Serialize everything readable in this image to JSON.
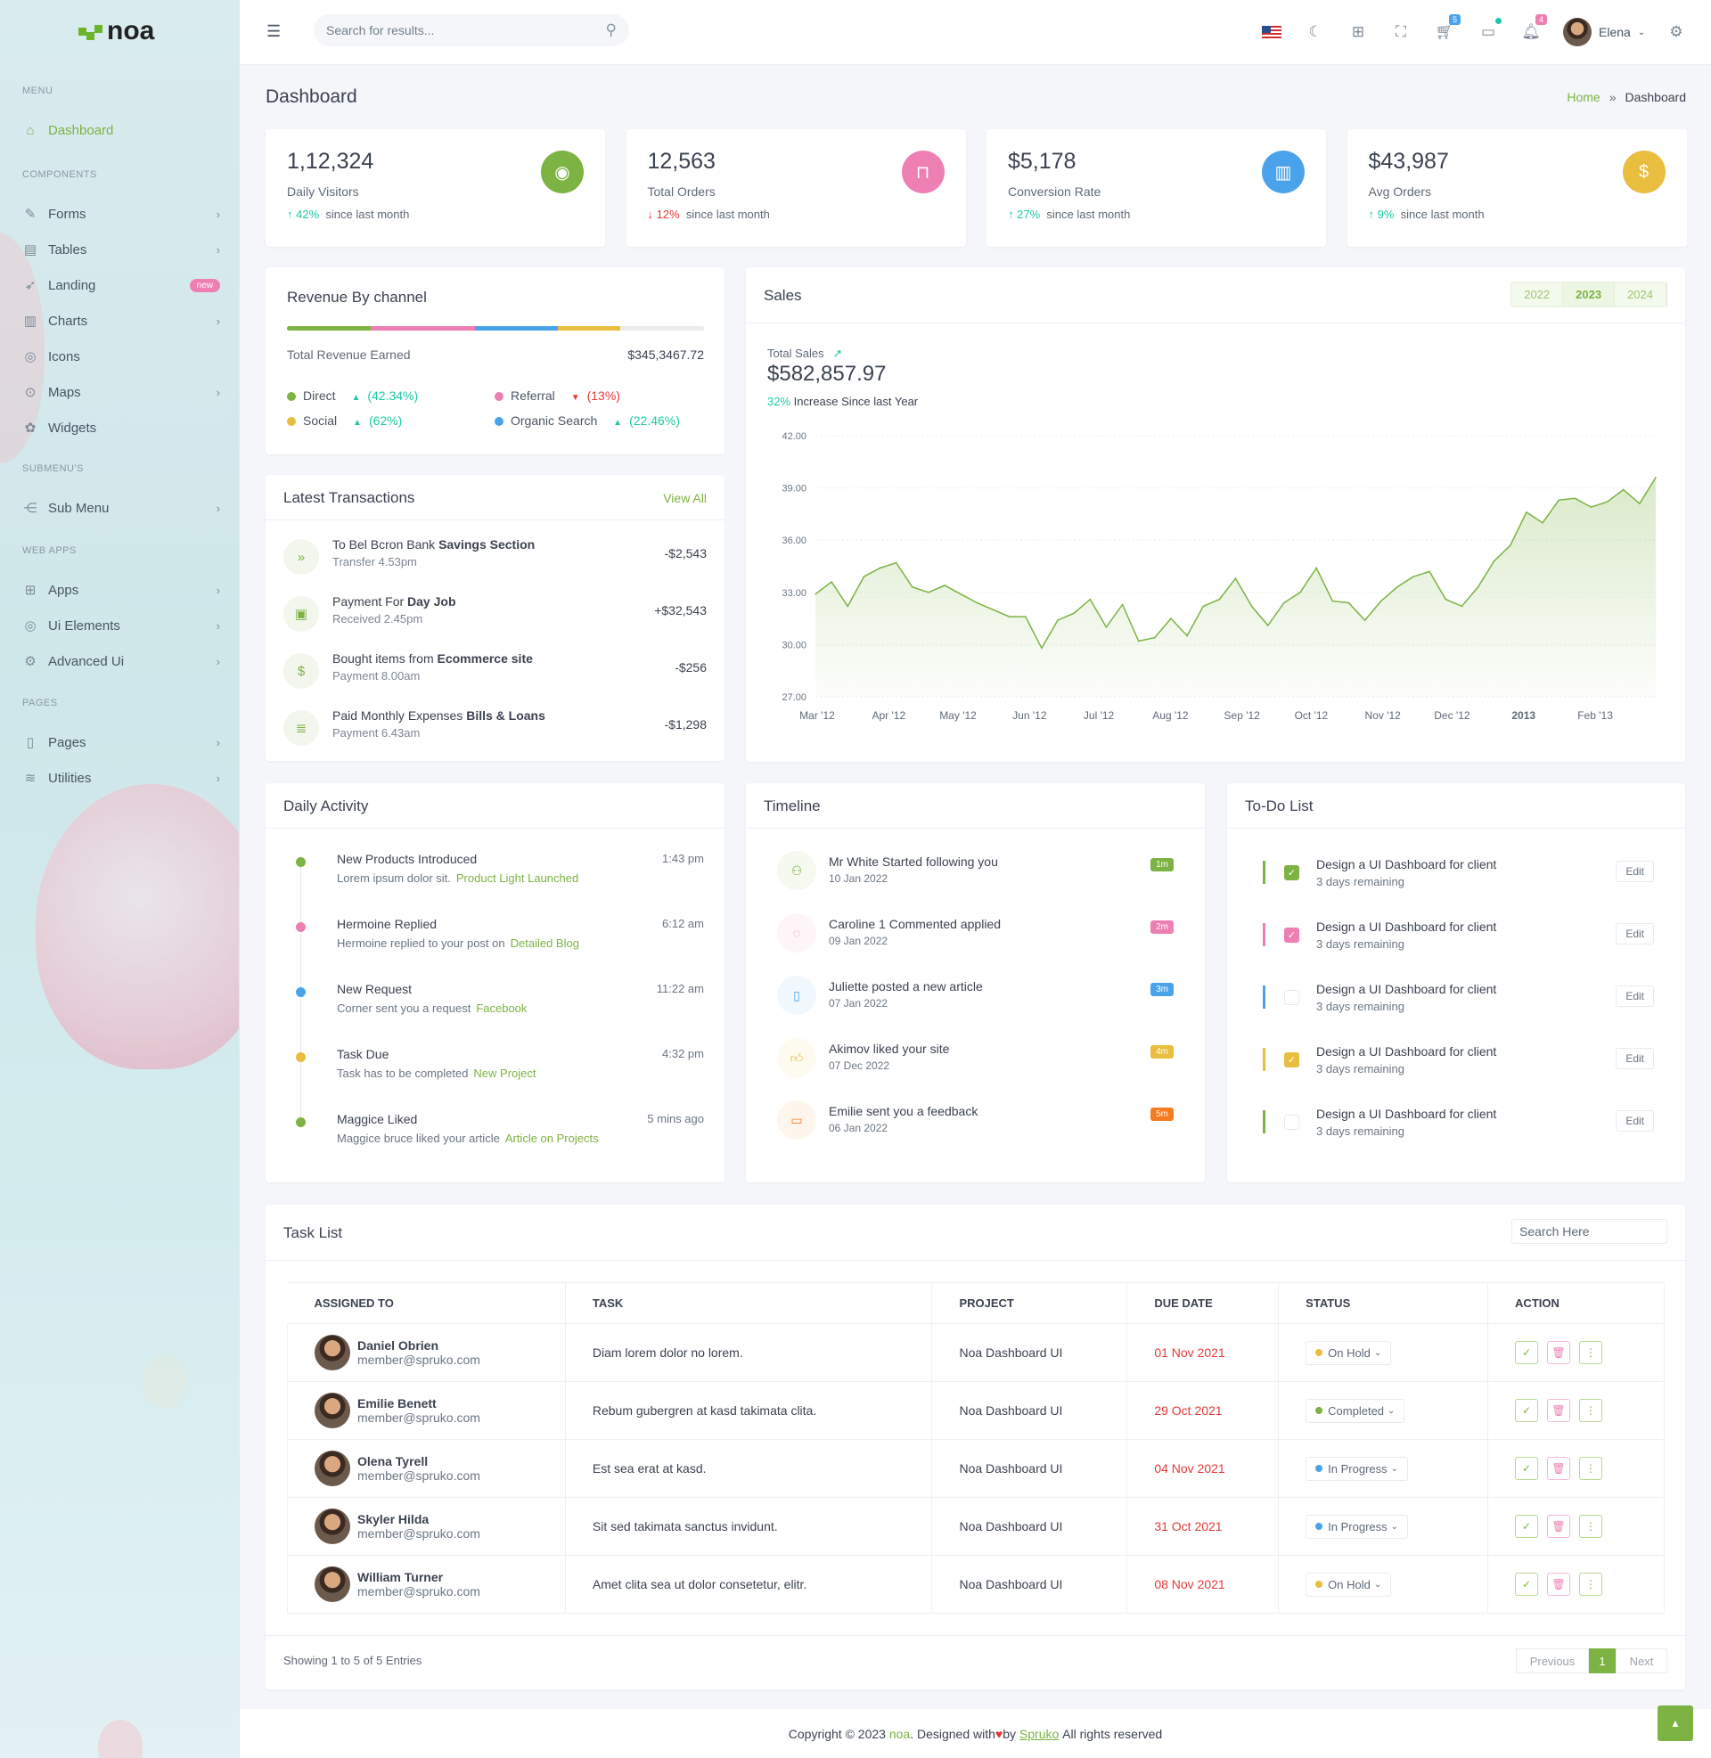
{
  "brand": {
    "name": "noa"
  },
  "colors": {
    "primary": "#7cb342",
    "pink": "#ed7fb2",
    "blue": "#4aa3ea",
    "yellow": "#e9bd3d",
    "teal": "#1dc9a5",
    "red": "#e53935"
  },
  "sidebar": {
    "sections": [
      {
        "title": "MENU",
        "items": [
          {
            "label": "Dashboard",
            "icon": "home-icon",
            "active": true
          }
        ]
      },
      {
        "title": "COMPONENTS",
        "items": [
          {
            "label": "Forms",
            "icon": "pencil-icon",
            "chevron": true
          },
          {
            "label": "Tables",
            "icon": "table-icon",
            "chevron": true
          },
          {
            "label": "Landing",
            "icon": "rocket-icon",
            "badge": "new"
          },
          {
            "label": "Charts",
            "icon": "bar-chart-icon",
            "chevron": true
          },
          {
            "label": "Icons",
            "icon": "aperture-icon"
          },
          {
            "label": "Maps",
            "icon": "map-pin-icon",
            "chevron": true
          },
          {
            "label": "Widgets",
            "icon": "widget-icon"
          }
        ]
      },
      {
        "title": "SUBMENU'S",
        "items": [
          {
            "label": "Sub Menu",
            "icon": "share-icon",
            "chevron": true
          }
        ]
      },
      {
        "title": "WEB APPS",
        "items": [
          {
            "label": "Apps",
            "icon": "grid-icon",
            "chevron": true
          },
          {
            "label": "Ui Elements",
            "icon": "aperture-icon",
            "chevron": true
          },
          {
            "label": "Advanced Ui",
            "icon": "gear-icon",
            "chevron": true
          }
        ]
      },
      {
        "title": "PAGES",
        "items": [
          {
            "label": "Pages",
            "icon": "file-icon",
            "chevron": true
          },
          {
            "label": "Utilities",
            "icon": "layers-icon",
            "chevron": true
          }
        ]
      }
    ]
  },
  "header": {
    "search_placeholder": "Search for results...",
    "cart_count": "5",
    "notif_count": "4",
    "user": "Elena"
  },
  "page": {
    "title": "Dashboard",
    "breadcrumb": [
      "Home",
      "Dashboard"
    ]
  },
  "stats": [
    {
      "value": "1,12,324",
      "label": "Daily Visitors",
      "trend": "up",
      "pct": "42%",
      "since": "since last month",
      "icon": "eye-icon",
      "color": "#7cb342"
    },
    {
      "value": "12,563",
      "label": "Total Orders",
      "trend": "down",
      "pct": "12%",
      "since": "since last month",
      "icon": "shopping-bag-icon",
      "color": "#ed7fb2"
    },
    {
      "value": "$5,178",
      "label": "Conversion Rate",
      "trend": "up",
      "pct": "27%",
      "since": "since last month",
      "icon": "chart-icon",
      "color": "#4aa3ea"
    },
    {
      "value": "$43,987",
      "label": "Avg Orders",
      "trend": "up",
      "pct": "9%",
      "since": "since last month",
      "icon": "invoice-icon",
      "color": "#e9bd3d"
    }
  ],
  "revenue": {
    "title": "Revenue By channel",
    "total_label": "Total Revenue Earned",
    "total_value": "$345,3467.72",
    "progress": [
      {
        "color": "#7cb342",
        "pct": 20
      },
      {
        "color": "#ed7fb2",
        "pct": 25
      },
      {
        "color": "#4aa3ea",
        "pct": 20
      },
      {
        "color": "#e9bd3d",
        "pct": 15
      }
    ],
    "channels": [
      {
        "name": "Direct",
        "trend": "up",
        "pct": "(42.34%)",
        "color": "#7cb342"
      },
      {
        "name": "Referral",
        "trend": "down",
        "pct": "(13%)",
        "color": "#ed7fb2"
      },
      {
        "name": "Social",
        "trend": "up",
        "pct": "(62%)",
        "color": "#e9bd3d"
      },
      {
        "name": "Organic Search",
        "trend": "up",
        "pct": "(22.46%)",
        "color": "#4aa3ea"
      }
    ]
  },
  "transactions": {
    "title": "Latest Transactions",
    "view_all": "View All",
    "items": [
      {
        "text": "To Bel Bcron Bank ",
        "bold": "Savings Section",
        "sub": "Transfer 4.53pm",
        "amount": "-$2,543",
        "icon": "double-chevron-icon"
      },
      {
        "text": "Payment For  ",
        "bold": "Day Job",
        "sub": "Received 2.45pm",
        "amount": "+$32,543",
        "icon": "briefcase-icon"
      },
      {
        "text": "Bought items from ",
        "bold": "Ecommerce site",
        "sub": "Payment 8.00am",
        "amount": "-$256",
        "icon": "dollar-icon"
      },
      {
        "text": "Paid Monthly Expenses ",
        "bold": "Bills & Loans",
        "sub": "Payment 6.43am",
        "amount": "-$1,298",
        "icon": "document-icon"
      }
    ]
  },
  "sales": {
    "title": "Sales",
    "years": [
      "2022",
      "2023",
      "2024"
    ],
    "active_year": "2023",
    "total_label": "Total Sales",
    "total": "$582,857.97",
    "increase_pct": "32%",
    "increase_text": "Increase Since last Year"
  },
  "chart_data": {
    "type": "area",
    "title": "",
    "xlabel": "",
    "ylabel": "",
    "ylim": [
      27,
      42
    ],
    "yticks": [
      "42.00",
      "39.00",
      "36.00",
      "33.00",
      "30.00",
      "27.00"
    ],
    "xticks": [
      "Mar '12",
      "Apr '12",
      "May '12",
      "Jun '12",
      "Jul '12",
      "Aug '12",
      "Sep '12",
      "Oct '12",
      "Nov '12",
      "Dec '12",
      "2013",
      "Feb '13"
    ],
    "xlim": [
      "2012-03-01",
      "2013-02-28"
    ],
    "grid": true,
    "color": "#7cb342",
    "points": [
      [
        "2012-03-01",
        32.9
      ],
      [
        "2012-03-08",
        33.6
      ],
      [
        "2012-03-15",
        32.2
      ],
      [
        "2012-03-22",
        33.9
      ],
      [
        "2012-03-29",
        34.4
      ],
      [
        "2012-04-05",
        34.7
      ],
      [
        "2012-04-12",
        33.3
      ],
      [
        "2012-04-19",
        33.0
      ],
      [
        "2012-04-26",
        33.4
      ],
      [
        "2012-05-03",
        32.9
      ],
      [
        "2012-05-10",
        32.4
      ],
      [
        "2012-05-17",
        32.0
      ],
      [
        "2012-05-24",
        31.6
      ],
      [
        "2012-05-31",
        31.6
      ],
      [
        "2012-06-07",
        29.8
      ],
      [
        "2012-06-14",
        31.4
      ],
      [
        "2012-06-21",
        31.8
      ],
      [
        "2012-06-28",
        32.6
      ],
      [
        "2012-07-05",
        31.0
      ],
      [
        "2012-07-12",
        32.3
      ],
      [
        "2012-07-19",
        30.2
      ],
      [
        "2012-07-26",
        30.4
      ],
      [
        "2012-08-02",
        31.5
      ],
      [
        "2012-08-09",
        30.5
      ],
      [
        "2012-08-16",
        32.2
      ],
      [
        "2012-08-23",
        32.6
      ],
      [
        "2012-08-30",
        33.8
      ],
      [
        "2012-09-06",
        32.2
      ],
      [
        "2012-09-13",
        31.1
      ],
      [
        "2012-09-20",
        32.4
      ],
      [
        "2012-09-27",
        33.0
      ],
      [
        "2012-10-04",
        34.4
      ],
      [
        "2012-10-11",
        32.5
      ],
      [
        "2012-10-18",
        32.4
      ],
      [
        "2012-10-25",
        31.4
      ],
      [
        "2012-11-01",
        32.5
      ],
      [
        "2012-11-08",
        33.3
      ],
      [
        "2012-11-15",
        33.9
      ],
      [
        "2012-11-22",
        34.2
      ],
      [
        "2012-11-29",
        32.6
      ],
      [
        "2012-12-06",
        32.2
      ],
      [
        "2012-12-13",
        33.3
      ],
      [
        "2012-12-20",
        34.8
      ],
      [
        "2012-12-27",
        35.7
      ],
      [
        "2013-01-03",
        37.6
      ],
      [
        "2013-01-10",
        37.0
      ],
      [
        "2013-01-17",
        38.3
      ],
      [
        "2013-01-24",
        38.4
      ],
      [
        "2013-01-31",
        37.9
      ],
      [
        "2013-02-07",
        38.2
      ],
      [
        "2013-02-14",
        38.9
      ],
      [
        "2013-02-21",
        38.1
      ],
      [
        "2013-02-28",
        39.6
      ]
    ]
  },
  "daily_activity": {
    "title": "Daily Activity",
    "items": [
      {
        "title": "New Products Introduced",
        "text": "Lorem ipsum dolor sit.",
        "link": "Product Light Launched",
        "time": "1:43 pm",
        "color": "#7cb342"
      },
      {
        "title": "Hermoine Replied",
        "text": "Hermoine replied to your post on",
        "link": "Detailed Blog",
        "time": "6:12 am",
        "color": "#ed7fb2"
      },
      {
        "title": "New Request",
        "text": "Corner sent you a request",
        "link": "Facebook",
        "time": "11:22 am",
        "color": "#4aa3ea"
      },
      {
        "title": "Task Due",
        "text": "Task has to be completed",
        "link": "New Project",
        "time": "4:32 pm",
        "color": "#e9bd3d"
      },
      {
        "title": "Maggice Liked",
        "text": "Maggice bruce liked your article",
        "link": "Article on Projects",
        "time": "5 mins ago",
        "color": "#7cb342"
      }
    ]
  },
  "timeline": {
    "title": "Timeline",
    "items": [
      {
        "text": "Mr White Started following you",
        "date": "10 Jan 2022",
        "badge": "1m",
        "color": "#7cb342",
        "icon": "user-plus-icon"
      },
      {
        "text": "Caroline 1 Commented applied",
        "date": "09 Jan 2022",
        "badge": "2m",
        "color": "#ed7fb2",
        "icon": "comment-icon"
      },
      {
        "text": "Juliette posted a new article",
        "date": "07 Jan 2022",
        "badge": "3m",
        "color": "#4aa3ea",
        "icon": "clipboard-icon"
      },
      {
        "text": "Akimov liked your site",
        "date": "07 Dec 2022",
        "badge": "4m",
        "color": "#e9bd3d",
        "icon": "thumbs-up-icon"
      },
      {
        "text": "Emilie sent you a feedback",
        "date": "06 Jan 2022",
        "badge": "5m",
        "color": "#f57c1f",
        "icon": "tablet-icon"
      }
    ]
  },
  "todo": {
    "title": "To-Do List",
    "edit_label": "Edit",
    "items": [
      {
        "text": "Design a UI Dashboard for client",
        "sub": "3 days remaining",
        "checked": true,
        "color": "#7cb342"
      },
      {
        "text": "Design a UI Dashboard for client",
        "sub": "3 days remaining",
        "checked": true,
        "color": "#ed7fb2"
      },
      {
        "text": "Design a UI Dashboard for client",
        "sub": "3 days remaining",
        "checked": false,
        "color": "#4aa3ea"
      },
      {
        "text": "Design a UI Dashboard for client",
        "sub": "3 days remaining",
        "checked": true,
        "color": "#e9bd3d"
      },
      {
        "text": "Design a UI Dashboard for client",
        "sub": "3 days remaining",
        "checked": false,
        "color": "#7cb342"
      }
    ]
  },
  "tasks": {
    "title": "Task List",
    "search_placeholder": "Search Here",
    "columns": [
      "ASSIGNED TO",
      "TASK",
      "PROJECT",
      "DUE DATE",
      "STATUS",
      "ACTION"
    ],
    "rows": [
      {
        "name": "Daniel Obrien",
        "email": "member@spruko.com",
        "task": "Diam lorem dolor no lorem.",
        "project": "Noa Dashboard UI",
        "due": "01 Nov 2021",
        "status": "On Hold",
        "status_color": "#e9bd3d"
      },
      {
        "name": "Emilie Benett",
        "email": "member@spruko.com",
        "task": "Rebum gubergren at kasd takimata clita.",
        "project": "Noa Dashboard UI",
        "due": "29 Oct 2021",
        "status": "Completed",
        "status_color": "#7cb342"
      },
      {
        "name": "Olena Tyrell",
        "email": "member@spruko.com",
        "task": "Est sea erat at kasd.",
        "project": "Noa Dashboard UI",
        "due": "04 Nov 2021",
        "status": "In Progress",
        "status_color": "#4aa3ea"
      },
      {
        "name": "Skyler Hilda",
        "email": "member@spruko.com",
        "task": "Sit sed takimata sanctus invidunt.",
        "project": "Noa Dashboard UI",
        "due": "31 Oct 2021",
        "status": "In Progress",
        "status_color": "#4aa3ea"
      },
      {
        "name": "William Turner",
        "email": "member@spruko.com",
        "task": "Amet clita sea ut dolor consetetur, elitr.",
        "project": "Noa Dashboard UI",
        "due": "08 Nov 2021",
        "status": "On Hold",
        "status_color": "#e9bd3d"
      }
    ],
    "showing": "Showing 1 to 5 of 5 Entries",
    "pagination": {
      "prev": "Previous",
      "page": "1",
      "next": "Next"
    }
  },
  "footer": {
    "pre": "Copyright © 2023 ",
    "brand": "noa",
    "mid": ". Designed with ",
    "by": " by ",
    "author": "Spruko",
    "post": " All rights reserved"
  }
}
